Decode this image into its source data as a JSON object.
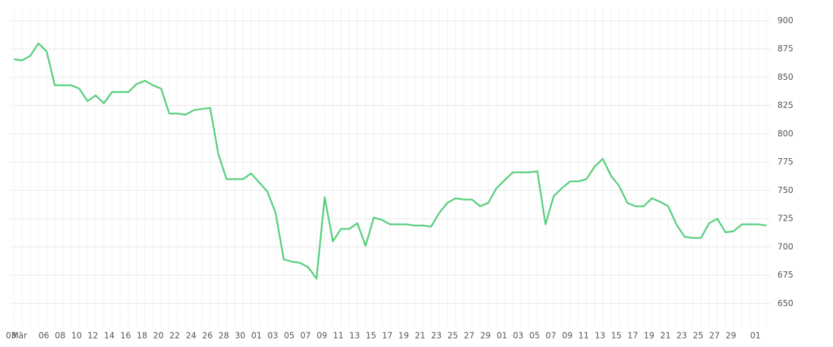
{
  "chart_data": {
    "type": "line",
    "color": "#5ad07f",
    "grid": true,
    "categories": [
      "03",
      "Mär",
      null,
      null,
      "06",
      null,
      "08",
      null,
      "10",
      null,
      "12",
      null,
      "14",
      null,
      "16",
      null,
      "18",
      null,
      "20",
      null,
      "22",
      null,
      "24",
      null,
      "26",
      null,
      "28",
      null,
      "30",
      null,
      "01",
      null,
      "03",
      null,
      "05",
      null,
      "07",
      null,
      "09",
      null,
      "11",
      null,
      "13",
      null,
      "15",
      null,
      "17",
      null,
      "19",
      null,
      "21",
      null,
      "23",
      null,
      "25",
      null,
      "27",
      null,
      "29",
      null,
      "01",
      null,
      "03",
      null,
      "05",
      null,
      "07",
      null,
      "09",
      null,
      "11",
      null,
      "13",
      null,
      "15",
      null,
      "17",
      null,
      "19",
      null,
      "21",
      null,
      "23",
      null,
      "25",
      null,
      "27",
      null,
      "29",
      null,
      null,
      "01",
      null
    ],
    "values": [
      866,
      865,
      869,
      880,
      873,
      843,
      843,
      843,
      840,
      829,
      834,
      827,
      837,
      837,
      837,
      844,
      847,
      843,
      840,
      818,
      818,
      817,
      821,
      822,
      823,
      782,
      760,
      760,
      760,
      765,
      757,
      749,
      730,
      689,
      687,
      686,
      682,
      672,
      744,
      705,
      716,
      716,
      721,
      701,
      726,
      724,
      720,
      720,
      720,
      719,
      719,
      718,
      730,
      739,
      743,
      742,
      742,
      736,
      739,
      752,
      759,
      766,
      766,
      766,
      767,
      720,
      745,
      752,
      758,
      758,
      760,
      771,
      778,
      763,
      754,
      739,
      736,
      736,
      743,
      740,
      736,
      720,
      709,
      708,
      708,
      721,
      725,
      713,
      714,
      720,
      720,
      720,
      719
    ],
    "ylim": [
      630,
      911
    ],
    "yticks": [
      650,
      675,
      700,
      725,
      750,
      775,
      800,
      825,
      850,
      875,
      900
    ]
  }
}
